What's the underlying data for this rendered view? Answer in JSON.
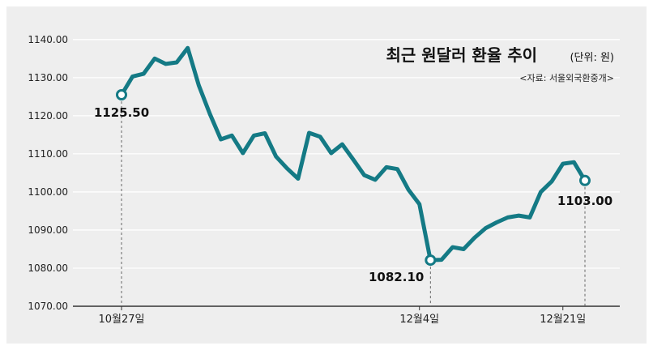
{
  "chart_data": {
    "type": "line",
    "title": "최근 원달러 환율 추이",
    "unit": "(단위: 원)",
    "source": "<자료: 서울외국환중개>",
    "yticks": [
      "1070.00",
      "1080.00",
      "1090.00",
      "1100.00",
      "1110.00",
      "1120.00",
      "1130.00",
      "1140.00"
    ],
    "ylim": [
      1070,
      1144
    ],
    "x_labels": [
      {
        "index": 0,
        "text": "10월27일"
      },
      {
        "index": 27,
        "text": "12월4일"
      },
      {
        "index": 40,
        "text": "12월21일"
      }
    ],
    "grid": true,
    "line_color": "#147a85",
    "values": [
      1125.5,
      1130.3,
      1131.0,
      1135.0,
      1133.6,
      1134.0,
      1137.8,
      1128.0,
      1120.5,
      1113.8,
      1114.8,
      1110.2,
      1114.8,
      1115.4,
      1109.3,
      1106.2,
      1103.5,
      1115.5,
      1114.5,
      1110.2,
      1112.5,
      1108.5,
      1104.4,
      1103.2,
      1106.5,
      1106.0,
      1100.6,
      1096.8,
      1082.1,
      1082.2,
      1085.5,
      1085.0,
      1088.0,
      1090.5,
      1092.0,
      1093.3,
      1093.8,
      1093.3,
      1100.0,
      1102.8,
      1107.4,
      1107.8,
      1103.0
    ],
    "highlights": [
      {
        "index": 0,
        "label": "1125.50"
      },
      {
        "index": 28,
        "label": "1082.10"
      },
      {
        "index": 42,
        "label": "1103.00"
      }
    ]
  }
}
